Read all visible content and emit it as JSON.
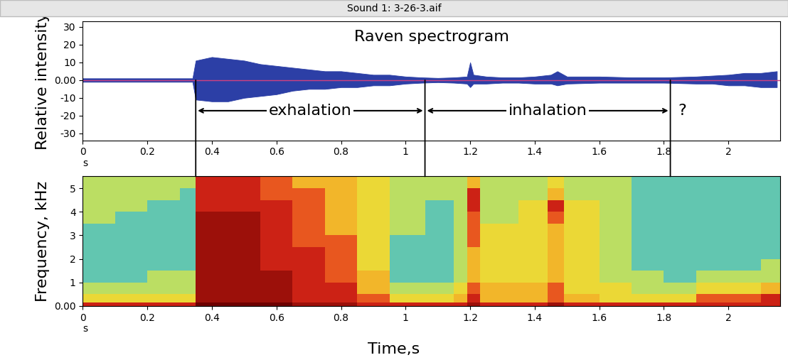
{
  "title": "Sound 1: 3-26-3.aif",
  "xlabel": "Time,s",
  "annotations": [
    {
      "text": "exhalation",
      "start": 0.35,
      "end": 1.06
    },
    {
      "text": "inhalation",
      "start": 1.06,
      "end": 1.82
    },
    {
      "text": "?",
      "x": 1.82
    }
  ],
  "chart_data": [
    {
      "type": "area",
      "title": "Raven spectrogram",
      "xlabel": "s",
      "ylabel": "Relative intensity",
      "color": "#2c3fa6",
      "baseline": 0,
      "x": [
        0,
        0.1,
        0.2,
        0.3,
        0.34,
        0.35,
        0.4,
        0.45,
        0.5,
        0.55,
        0.6,
        0.65,
        0.7,
        0.75,
        0.8,
        0.85,
        0.9,
        0.95,
        1.0,
        1.05,
        1.1,
        1.15,
        1.19,
        1.2,
        1.21,
        1.25,
        1.3,
        1.35,
        1.4,
        1.45,
        1.47,
        1.5,
        1.6,
        1.7,
        1.8,
        1.9,
        1.95,
        2.0,
        2.05,
        2.1,
        2.15
      ],
      "upper": [
        1,
        1,
        1,
        1,
        1,
        11,
        13,
        12,
        11,
        9,
        8,
        7,
        6,
        5,
        5,
        4,
        3,
        3,
        2,
        1.5,
        1.2,
        1.5,
        2,
        10,
        3,
        2,
        1.5,
        1.5,
        2,
        3,
        5,
        2,
        2,
        1.5,
        1.5,
        2,
        2.5,
        3,
        4,
        4,
        5
      ],
      "lower": [
        -1,
        -1,
        -1,
        -1,
        -1,
        -11,
        -12,
        -12,
        -10,
        -9,
        -8,
        -6,
        -5,
        -5,
        -4,
        -4,
        -3,
        -3,
        -2,
        -1.5,
        -1.2,
        -1.5,
        -2,
        -4,
        -2,
        -2,
        -1.5,
        -1.5,
        -2,
        -2,
        -3,
        -2,
        -1.5,
        -1.5,
        -1.5,
        -2,
        -2,
        -3,
        -3,
        -4,
        -4
      ],
      "xlim": [
        0,
        2.16
      ],
      "xticks": [
        0,
        0.2,
        0.4,
        0.6,
        0.8,
        1,
        1.2,
        1.4,
        1.6,
        1.8,
        2
      ],
      "ylim": [
        -34,
        33
      ],
      "yticks": [
        -30,
        -20,
        -10,
        {
          "value": 0,
          "label": "0.00"
        },
        10,
        20,
        30
      ]
    },
    {
      "type": "heatmap",
      "xlabel": "s",
      "ylabel": "Frequency, kHz",
      "time_edges": [
        0,
        0.1,
        0.2,
        0.3,
        0.35,
        0.45,
        0.55,
        0.65,
        0.75,
        0.85,
        0.95,
        1.06,
        1.15,
        1.19,
        1.23,
        1.35,
        1.44,
        1.49,
        1.6,
        1.7,
        1.8,
        1.9,
        2.0,
        2.1,
        2.16
      ],
      "frequency_edges": [
        0,
        0.15,
        0.5,
        1,
        1.5,
        2,
        2.5,
        3,
        3.5,
        4,
        4.5,
        5,
        5.5
      ],
      "value_range": [
        0,
        10
      ],
      "cells_by_time": [
        [
          8,
          5,
          4,
          3,
          3,
          3,
          3,
          3,
          4,
          4,
          4,
          4
        ],
        [
          8,
          5,
          4,
          3,
          3,
          3,
          3,
          3,
          3,
          4,
          4,
          4
        ],
        [
          8,
          5,
          4,
          4,
          3,
          3,
          3,
          3,
          3,
          3,
          4,
          4
        ],
        [
          8,
          5,
          4,
          4,
          3,
          3,
          3,
          3,
          3,
          3,
          3,
          4
        ],
        [
          10,
          9,
          9,
          9,
          9,
          9,
          9,
          9,
          9,
          8,
          8,
          8
        ],
        [
          10,
          9,
          9,
          9,
          9,
          9,
          9,
          9,
          9,
          8,
          8,
          8
        ],
        [
          10,
          9,
          9,
          9,
          8,
          8,
          8,
          8,
          8,
          8,
          7,
          7
        ],
        [
          9,
          8,
          8,
          8,
          8,
          8,
          7,
          7,
          7,
          7,
          7,
          6
        ],
        [
          9,
          8,
          8,
          7,
          7,
          7,
          7,
          6,
          6,
          6,
          6,
          6
        ],
        [
          8,
          7,
          6,
          6,
          5,
          5,
          5,
          5,
          5,
          5,
          5,
          5
        ],
        [
          8,
          5,
          4,
          3,
          3,
          3,
          3,
          4,
          4,
          4,
          4,
          4
        ],
        [
          8,
          5,
          4,
          3,
          3,
          3,
          3,
          3,
          3,
          3,
          4,
          4
        ],
        [
          8,
          6,
          5,
          4,
          4,
          4,
          4,
          4,
          4,
          4,
          4,
          4
        ],
        [
          9,
          8,
          7,
          6,
          6,
          6,
          7,
          7,
          7,
          8,
          8,
          6
        ],
        [
          8,
          6,
          6,
          5,
          5,
          5,
          5,
          5,
          4,
          4,
          4,
          4
        ],
        [
          8,
          6,
          6,
          5,
          5,
          5,
          5,
          5,
          5,
          5,
          4,
          4
        ],
        [
          9,
          7,
          7,
          6,
          6,
          6,
          6,
          6,
          7,
          8,
          6,
          5
        ],
        [
          8,
          6,
          5,
          5,
          5,
          5,
          5,
          5,
          5,
          5,
          4,
          4
        ],
        [
          8,
          5,
          5,
          4,
          4,
          4,
          4,
          4,
          4,
          4,
          4,
          4
        ],
        [
          8,
          5,
          4,
          4,
          3,
          3,
          3,
          3,
          3,
          3,
          3,
          3
        ],
        [
          8,
          5,
          4,
          3,
          3,
          3,
          3,
          3,
          3,
          3,
          3,
          3
        ],
        [
          8,
          7,
          5,
          4,
          3,
          3,
          3,
          3,
          3,
          3,
          3,
          3
        ],
        [
          8,
          7,
          5,
          4,
          3,
          3,
          3,
          3,
          3,
          3,
          3,
          3
        ],
        [
          8,
          8,
          6,
          4,
          4,
          3,
          3,
          3,
          3,
          3,
          3,
          3
        ]
      ],
      "xlim": [
        0,
        2.16
      ],
      "xticks": [
        0,
        0.2,
        0.4,
        0.6,
        0.8,
        1,
        1.2,
        1.4,
        1.6,
        1.8,
        2
      ],
      "ylim": [
        0,
        5.5
      ],
      "yticks": [
        {
          "value": 0,
          "label": "0.00"
        },
        1,
        2,
        3,
        4,
        5
      ]
    }
  ]
}
